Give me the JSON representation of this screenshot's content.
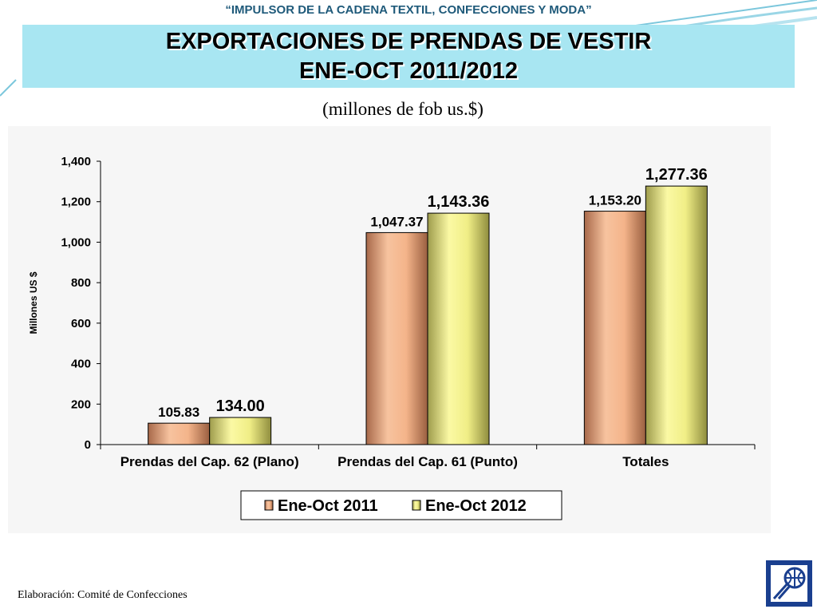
{
  "header": {
    "banner": "“IMPULSOR DE LA CADENA TEXTIL, CONFECCIONES Y MODA”",
    "title_line1": "EXPORTACIONES DE PRENDAS DE VESTIR",
    "title_line2": "ENE-OCT 2011/2012",
    "subtitle": "(millones de fob us.$)"
  },
  "footer": {
    "credit": "Elaboración: Comité de Confecciones"
  },
  "colors": {
    "title_bg": "#a8e6f2",
    "series_2011": "#f4b48a",
    "series_2012": "#f0ee86"
  },
  "chart_data": {
    "type": "bar",
    "categories": [
      "Prendas del Cap. 62 (Plano)",
      "Prendas del Cap. 61 (Punto)",
      "Totales"
    ],
    "series": [
      {
        "name": "Ene-Oct 2011",
        "values": [
          105.83,
          1047.37,
          1153.2
        ],
        "labels": [
          "105.83",
          "1,047.37",
          "1,153.20"
        ],
        "color": "#f4b48a"
      },
      {
        "name": "Ene-Oct 2012",
        "values": [
          134.0,
          1143.36,
          1277.36
        ],
        "labels": [
          "134.00",
          "1,143.36",
          "1,277.36"
        ],
        "color": "#f0ee86"
      }
    ],
    "ylabel": "Millones US $",
    "ylim": [
      0,
      1400
    ],
    "yticks": [
      0,
      200,
      400,
      600,
      800,
      1000,
      1200,
      1400
    ],
    "ytick_labels": [
      "0",
      "200",
      "400",
      "600",
      "800",
      "1,000",
      "1,200",
      "1,400"
    ],
    "grid": false,
    "legend": "bottom"
  }
}
